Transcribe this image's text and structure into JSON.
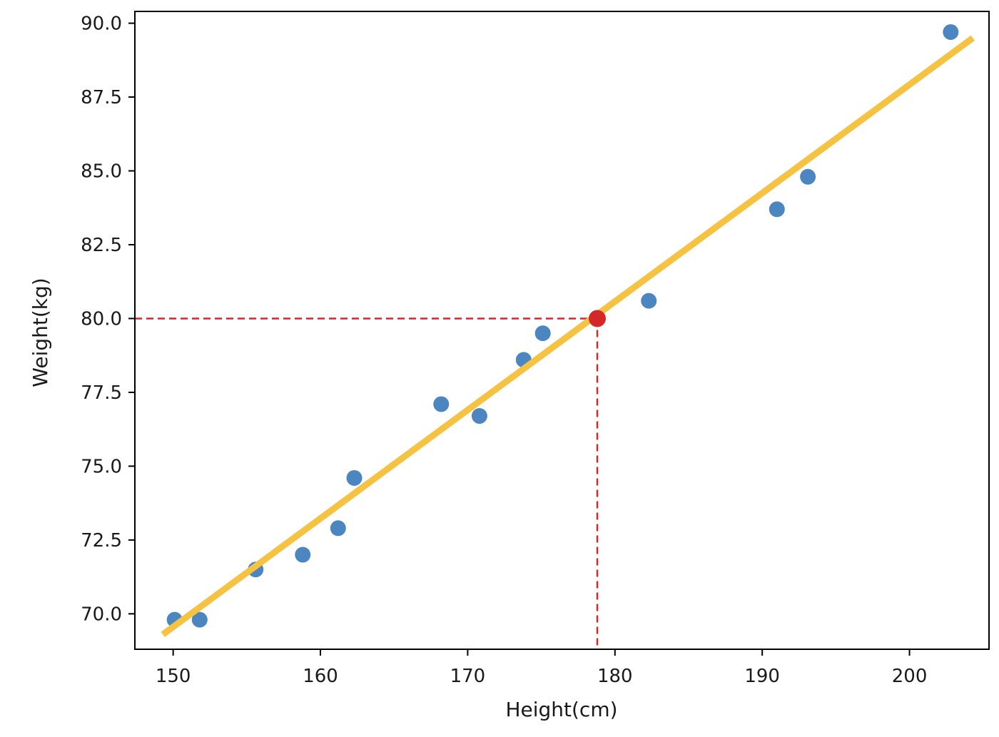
{
  "chart_data": {
    "type": "scatter",
    "xlabel": "Height(cm)",
    "ylabel": "Weight(kg)",
    "xlim": [
      147.4,
      205.4
    ],
    "ylim": [
      68.8,
      90.4
    ],
    "xticks": [
      150,
      160,
      170,
      180,
      190,
      200
    ],
    "xtick_labels": [
      "150",
      "160",
      "170",
      "180",
      "190",
      "200"
    ],
    "yticks": [
      70,
      72.5,
      75,
      77.5,
      80,
      82.5,
      85,
      87.5,
      90
    ],
    "ytick_labels": [
      "70.0",
      "72.5",
      "75.0",
      "77.5",
      "80.0",
      "82.5",
      "85.0",
      "87.5",
      "90.0"
    ],
    "grid": false,
    "points": {
      "color": "#4c86c0",
      "x": [
        150.1,
        151.8,
        155.6,
        158.8,
        161.2,
        162.3,
        168.2,
        170.8,
        173.8,
        175.1,
        182.3,
        191.0,
        193.1,
        202.8
      ],
      "y": [
        69.8,
        69.8,
        71.5,
        72.0,
        72.9,
        74.6,
        77.1,
        76.7,
        78.6,
        79.5,
        80.6,
        83.7,
        84.8,
        89.7
      ]
    },
    "regression_line": {
      "color": "#f5c242",
      "x": [
        149.3,
        204.3
      ],
      "y": [
        69.3,
        89.5
      ]
    },
    "highlight_point": {
      "color": "#d62728",
      "x": 178.8,
      "y": 80.0
    }
  }
}
